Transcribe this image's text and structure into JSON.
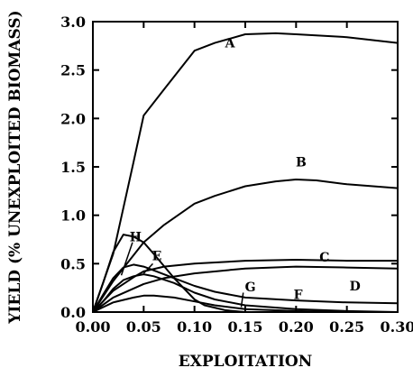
{
  "chart_data": {
    "type": "line",
    "title": "",
    "xlabel": "EXPLOITATION",
    "ylabel": "YIELD (% UNEXPLOITED BIOMASS)",
    "xlim": [
      0,
      0.3
    ],
    "ylim": [
      0,
      3.0
    ],
    "x_ticks": [
      "0.00",
      "0.05",
      "0.10",
      "0.15",
      "0.20",
      "0.25",
      "0.30"
    ],
    "y_ticks": [
      "0.0",
      "0.5",
      "1.0",
      "1.5",
      "2.0",
      "2.5",
      "3.0"
    ],
    "grid": false,
    "legend": "none",
    "series": [
      {
        "name": "A",
        "x": [
          0,
          0.02,
          0.04,
          0.05,
          0.07,
          0.1,
          0.12,
          0.15,
          0.18,
          0.2,
          0.25,
          0.3
        ],
        "y": [
          0,
          0.6,
          1.55,
          2.03,
          2.3,
          2.7,
          2.78,
          2.87,
          2.88,
          2.87,
          2.84,
          2.78
        ]
      },
      {
        "name": "B",
        "x": [
          0,
          0.02,
          0.05,
          0.07,
          0.1,
          0.12,
          0.15,
          0.18,
          0.2,
          0.22,
          0.25,
          0.3
        ],
        "y": [
          0,
          0.32,
          0.72,
          0.9,
          1.12,
          1.2,
          1.3,
          1.35,
          1.37,
          1.36,
          1.32,
          1.28
        ]
      },
      {
        "name": "C",
        "x": [
          0,
          0.02,
          0.04,
          0.05,
          0.07,
          0.1,
          0.15,
          0.2,
          0.25,
          0.3
        ],
        "y": [
          0,
          0.22,
          0.36,
          0.42,
          0.47,
          0.5,
          0.53,
          0.54,
          0.53,
          0.53
        ]
      },
      {
        "name": "D",
        "x": [
          0,
          0.02,
          0.05,
          0.07,
          0.1,
          0.15,
          0.2,
          0.25,
          0.3
        ],
        "y": [
          0,
          0.15,
          0.29,
          0.35,
          0.4,
          0.45,
          0.47,
          0.46,
          0.45
        ]
      },
      {
        "name": "E",
        "x": [
          0,
          0.01,
          0.02,
          0.03,
          0.04,
          0.05,
          0.06,
          0.08,
          0.1,
          0.12,
          0.15,
          0.2,
          0.25,
          0.3
        ],
        "y": [
          0,
          0.18,
          0.35,
          0.46,
          0.49,
          0.47,
          0.43,
          0.35,
          0.27,
          0.21,
          0.15,
          0.12,
          0.1,
          0.09
        ]
      },
      {
        "name": "F",
        "x": [
          0,
          0.01,
          0.02,
          0.03,
          0.04,
          0.05,
          0.06,
          0.08,
          0.1,
          0.12,
          0.15,
          0.2,
          0.25,
          0.3
        ],
        "y": [
          0,
          0.11,
          0.24,
          0.33,
          0.37,
          0.39,
          0.37,
          0.3,
          0.2,
          0.13,
          0.07,
          0.03,
          0.01,
          0.0
        ]
      },
      {
        "name": "G",
        "x": [
          0,
          0.01,
          0.02,
          0.04,
          0.05,
          0.06,
          0.08,
          0.1,
          0.12,
          0.15,
          0.2,
          0.25,
          0.3
        ],
        "y": [
          0,
          0.05,
          0.1,
          0.15,
          0.17,
          0.17,
          0.15,
          0.11,
          0.07,
          0.03,
          0.01,
          0.0,
          0.0
        ]
      },
      {
        "name": "H",
        "x": [
          0,
          0.01,
          0.02,
          0.03,
          0.04,
          0.05,
          0.06,
          0.08,
          0.1,
          0.11,
          0.13,
          0.15
        ],
        "y": [
          0,
          0.3,
          0.62,
          0.8,
          0.78,
          0.72,
          0.6,
          0.35,
          0.13,
          0.07,
          0.02,
          0.0
        ]
      }
    ],
    "labels": [
      {
        "text": "A",
        "x": 0.135,
        "y": 2.78
      },
      {
        "text": "B",
        "x": 0.205,
        "y": 1.55
      },
      {
        "text": "C",
        "x": 0.228,
        "y": 0.57
      },
      {
        "text": "D",
        "x": 0.258,
        "y": 0.27
      },
      {
        "text": "E",
        "x": 0.063,
        "y": 0.58
      },
      {
        "text": "F",
        "x": 0.202,
        "y": 0.18
      },
      {
        "text": "G",
        "x": 0.155,
        "y": 0.26
      },
      {
        "text": "H",
        "x": 0.042,
        "y": 0.78
      }
    ]
  }
}
